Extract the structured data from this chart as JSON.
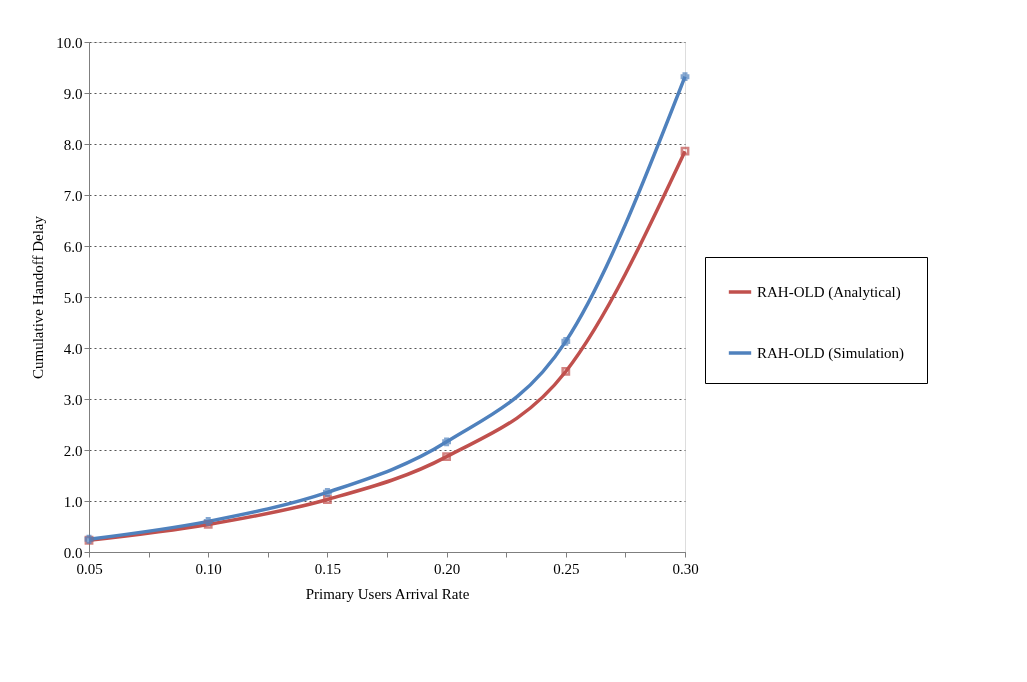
{
  "chart_data": {
    "type": "line",
    "xlabel": "Primary Users Arrival Rate",
    "ylabel": "Cumulative Handoff Delay",
    "x": [
      0.05,
      0.1,
      0.15,
      0.2,
      0.25,
      0.3
    ],
    "series": [
      {
        "name": "RAH-OLD (Analytical)",
        "color": "#c0504d",
        "marker": "square",
        "values": [
          0.23,
          0.54,
          1.03,
          1.87,
          3.54,
          7.86
        ]
      },
      {
        "name": "RAH-OLD (Simulation)",
        "color": "#4f81bd",
        "marker": "cross",
        "values": [
          0.25,
          0.6,
          1.17,
          2.16,
          4.13,
          9.32
        ]
      }
    ],
    "xlim": [
      0.05,
      0.3
    ],
    "xticks": [
      0.05,
      {
        "value": 0.075,
        "label": null
      },
      {
        "value": 0.1,
        "label": "0.10"
      },
      {
        "value": 0.125,
        "label": null
      },
      0.15,
      {
        "value": 0.175,
        "label": null
      },
      {
        "value": 0.2,
        "label": "0.20"
      },
      {
        "value": 0.225,
        "label": null
      },
      0.25,
      {
        "value": 0.275,
        "label": null
      },
      {
        "value": 0.3,
        "label": "0.30"
      }
    ],
    "ylim": [
      0,
      10
    ],
    "yticks": [
      {
        "value": 0,
        "label": "0.0"
      },
      {
        "value": 1,
        "label": "1.0"
      },
      {
        "value": 2,
        "label": "2.0"
      },
      {
        "value": 3,
        "label": "3.0"
      },
      {
        "value": 4,
        "label": "4.0"
      },
      {
        "value": 5,
        "label": "5.0"
      },
      {
        "value": 6,
        "label": "6.0"
      },
      {
        "value": 7,
        "label": "7.0"
      },
      {
        "value": 8,
        "label": "8.0"
      },
      {
        "value": 9,
        "label": "9.0"
      },
      {
        "value": 10,
        "label": "10.0"
      }
    ],
    "grid": "y",
    "legend": "right",
    "line_style": "solid"
  }
}
